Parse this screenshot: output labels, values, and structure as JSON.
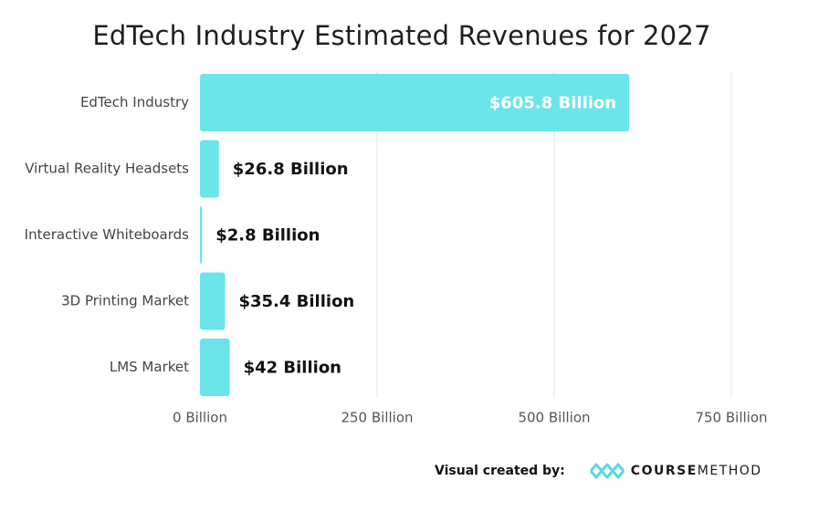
{
  "chart_data": {
    "type": "bar",
    "orientation": "horizontal",
    "title": "EdTech Industry Estimated Revenues for 2027",
    "categories": [
      "EdTech Industry",
      "Virtual Reality Headsets",
      "Interactive Whiteboards",
      "3D Printing Market",
      "LMS Market"
    ],
    "values": [
      605.8,
      26.8,
      2.8,
      35.4,
      42
    ],
    "data_labels": [
      "$605.8 Billion",
      "$26.8 Billion",
      "$2.8 Billion",
      "$35.4 Billion",
      "$42 Billion"
    ],
    "xlim": [
      0,
      750
    ],
    "x_ticks": [
      0,
      250,
      500,
      750
    ],
    "x_tick_labels": [
      "0 Billion",
      "250 Billion",
      "500 Billion",
      "750 Billion"
    ],
    "xlabel": "",
    "ylabel": "",
    "grid": true,
    "legend": false,
    "bar_color": "#6ae5e9"
  },
  "footer": {
    "credit": "Visual created by:",
    "brand_part1": "COURSE",
    "brand_part2": "METHOD",
    "brand_color": "#5fd6dc"
  }
}
